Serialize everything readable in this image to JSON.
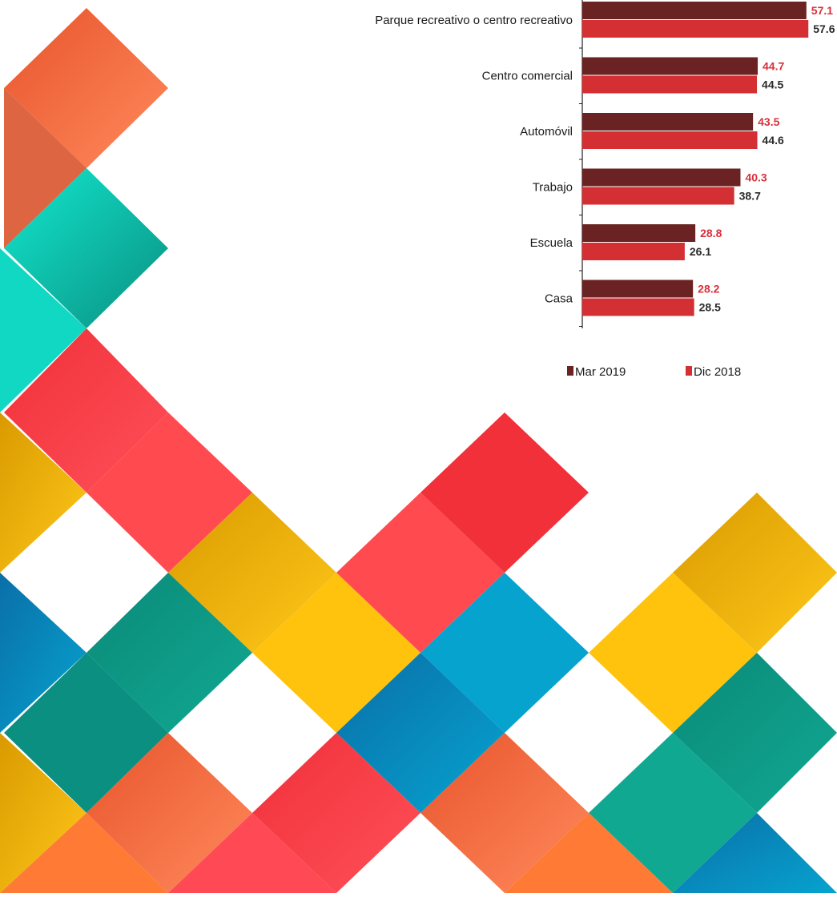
{
  "chart_data": {
    "type": "bar",
    "orientation": "horizontal",
    "categories": [
      "Parque recreativo o centro recreativo",
      "Centro comercial",
      "Automóvil",
      "Trabajo",
      "Escuela",
      "Casa"
    ],
    "series": [
      {
        "name": "Mar  2019",
        "values": [
          57.1,
          44.7,
          43.5,
          40.3,
          28.8,
          28.2
        ],
        "color": "#6b2222",
        "label_color": "#d9303a"
      },
      {
        "name": "Dic  2018",
        "values": [
          57.6,
          44.5,
          44.6,
          38.7,
          26.1,
          28.5
        ],
        "color": "#d42f33",
        "label_color": "#2a2a2a"
      }
    ],
    "grid": false,
    "legend_position": "bottom"
  }
}
